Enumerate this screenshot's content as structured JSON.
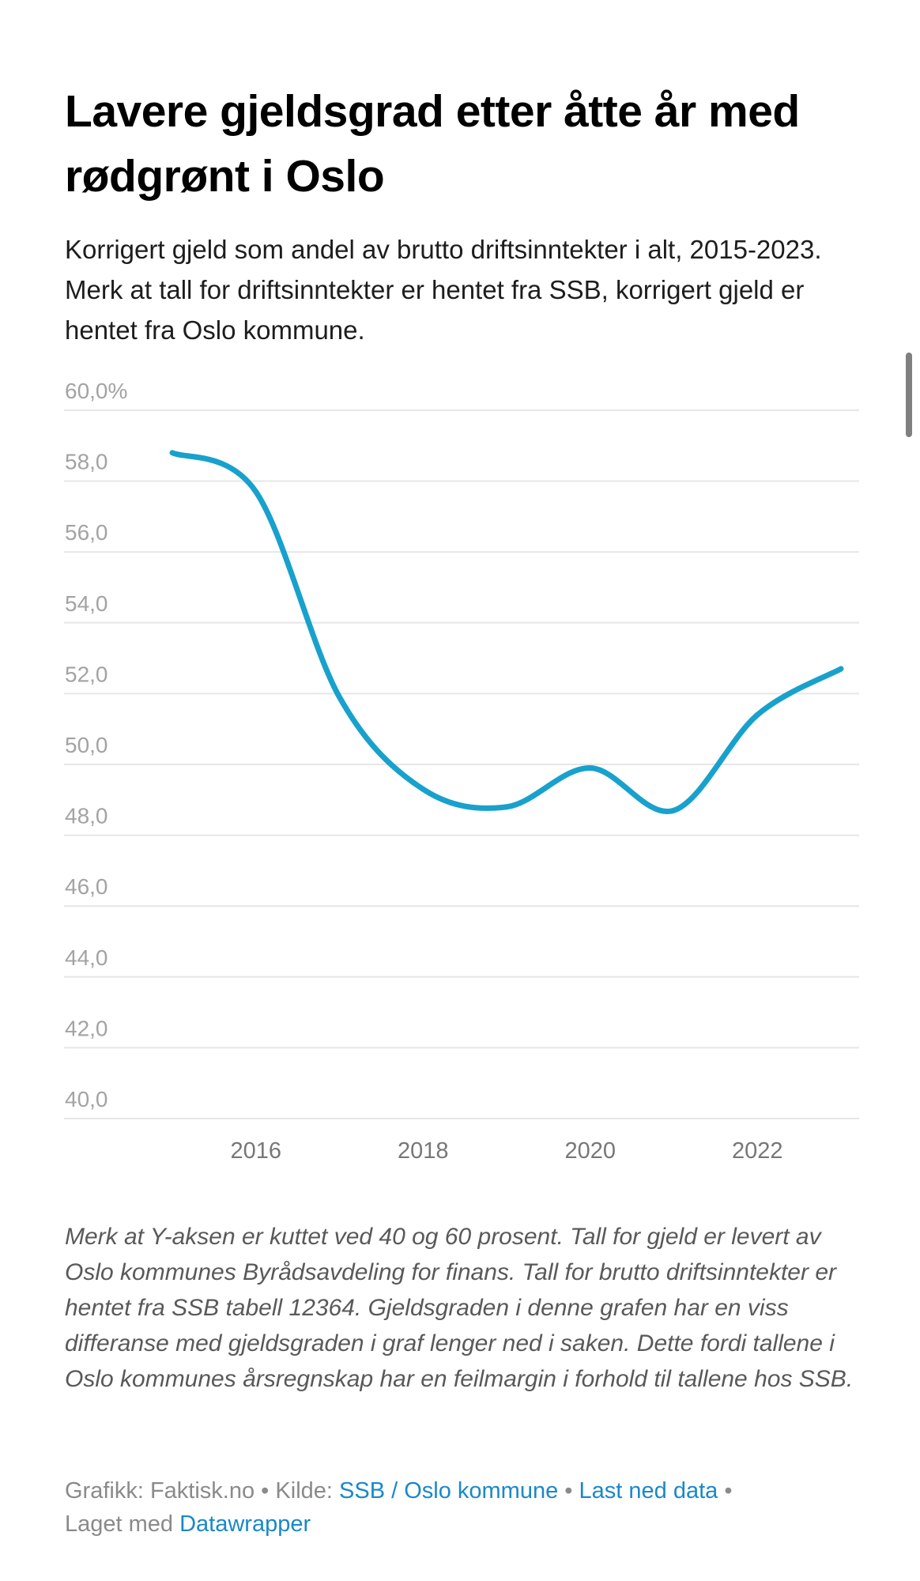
{
  "title": "Lavere gjeldsgrad etter åtte år med rødgrønt i Oslo",
  "subtitle": "Korrigert gjeld som andel av brutto driftsinntekter i alt, 2015-2023. Merk at tall for driftsinntekter er hentet fra SSB, korrigert gjeld er hentet fra Oslo kommune.",
  "notes": "Merk at Y-aksen er kuttet ved 40 og 60 prosent. Tall for gjeld er levert av Oslo kommunes Byrådsavdeling for finans. Tall for brutto driftsinntekter er hentet fra SSB tabell 12364. Gjeldsgraden i denne grafen har en viss differanse med gjeldsgraden i graf lenger ned i saken. Dette fordi tallene i Oslo kommunes årsregnskap har en feilmargin i forhold til tallene hos SSB.",
  "footer": {
    "graphics_label": "Grafikk: Faktisk.no",
    "separator": " • ",
    "source_prefix": "Kilde: ",
    "source_link": "SSB / Oslo kommune",
    "download_link": "Last ned data",
    "made_with_prefix": "Laget med ",
    "made_with_link": "Datawrapper"
  },
  "colors": {
    "line": "#18a1cd",
    "link": "#1a88c9"
  },
  "chart_data": {
    "type": "line",
    "title": "Lavere gjeldsgrad etter åtte år med rødgrønt i Oslo",
    "xlabel": "",
    "ylabel": "",
    "x": [
      2015,
      2016,
      2017,
      2018,
      2019,
      2020,
      2021,
      2022,
      2023
    ],
    "series": [
      {
        "name": "Korrigert gjeld som andel av brutto driftsinntekter",
        "values": [
          58.8,
          57.7,
          51.9,
          49.3,
          48.8,
          49.9,
          48.7,
          51.4,
          52.7
        ]
      }
    ],
    "ylim": [
      40,
      60
    ],
    "xlim": [
      2015,
      2023
    ],
    "y_ticks": [
      {
        "value": 60,
        "label": "60,0%"
      },
      {
        "value": 58,
        "label": "58,0"
      },
      {
        "value": 56,
        "label": "56,0"
      },
      {
        "value": 54,
        "label": "54,0"
      },
      {
        "value": 52,
        "label": "52,0"
      },
      {
        "value": 50,
        "label": "50,0"
      },
      {
        "value": 48,
        "label": "48,0"
      },
      {
        "value": 46,
        "label": "46,0"
      },
      {
        "value": 44,
        "label": "44,0"
      },
      {
        "value": 42,
        "label": "42,0"
      },
      {
        "value": 40,
        "label": "40,0"
      }
    ],
    "x_ticks": [
      {
        "value": 2016,
        "label": "2016"
      },
      {
        "value": 2018,
        "label": "2018"
      },
      {
        "value": 2020,
        "label": "2020"
      },
      {
        "value": 2022,
        "label": "2022"
      }
    ],
    "grid": true,
    "curve": "smooth",
    "legend": "none"
  }
}
